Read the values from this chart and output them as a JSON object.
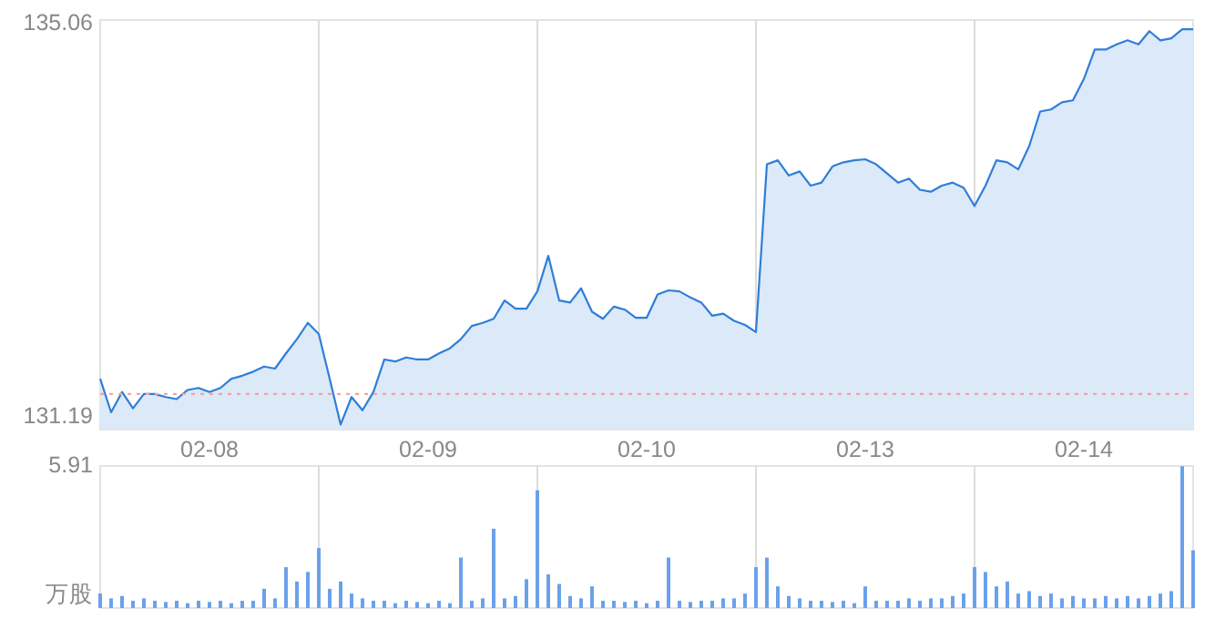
{
  "chart_data": [
    {
      "type": "area",
      "ylim": [
        131.07,
        135.1
      ],
      "yticks": [
        135.06,
        131.19
      ],
      "grid": "x",
      "categories": [
        null,
        null,
        null,
        null,
        null,
        null,
        null,
        null,
        null,
        null,
        "02-08",
        null,
        null,
        null,
        null,
        null,
        null,
        null,
        null,
        null,
        null,
        null,
        null,
        null,
        null,
        null,
        null,
        null,
        null,
        null,
        "02-09",
        null,
        null,
        null,
        null,
        null,
        null,
        null,
        null,
        null,
        null,
        null,
        null,
        null,
        null,
        null,
        null,
        null,
        null,
        null,
        "02-10",
        null,
        null,
        null,
        null,
        null,
        null,
        null,
        null,
        null,
        null,
        null,
        null,
        null,
        null,
        null,
        null,
        null,
        null,
        null,
        "02-13",
        null,
        null,
        null,
        null,
        null,
        null,
        null,
        null,
        null,
        null,
        null,
        null,
        null,
        null,
        null,
        null,
        null,
        null,
        null,
        "02-14",
        null,
        null,
        null,
        null,
        null,
        null,
        null,
        null,
        null,
        null
      ],
      "ref_lines": [
        {
          "axis": "y",
          "value": 131.42,
          "color": "#f4a3a3",
          "line_style": "dotted"
        }
      ],
      "series": [
        {
          "color": "#2f7ed8",
          "values": [
            131.57,
            131.24,
            131.44,
            131.28,
            131.42,
            131.42,
            131.39,
            131.37,
            131.46,
            131.48,
            131.44,
            131.48,
            131.57,
            131.6,
            131.64,
            131.69,
            131.67,
            131.82,
            131.96,
            132.12,
            132.01,
            131.57,
            131.12,
            131.39,
            131.26,
            131.44,
            131.76,
            131.74,
            131.78,
            131.76,
            131.76,
            131.82,
            131.87,
            131.96,
            132.09,
            132.12,
            132.16,
            132.34,
            132.26,
            132.26,
            132.43,
            132.78,
            132.34,
            132.32,
            132.46,
            132.23,
            132.16,
            132.28,
            132.25,
            132.17,
            132.17,
            132.4,
            132.44,
            132.43,
            132.37,
            132.32,
            132.19,
            132.21,
            132.14,
            132.1,
            132.03,
            133.68,
            133.72,
            133.57,
            133.61,
            133.47,
            133.5,
            133.66,
            133.7,
            133.72,
            133.73,
            133.68,
            133.59,
            133.5,
            133.54,
            133.43,
            133.41,
            133.47,
            133.5,
            133.45,
            133.27,
            133.47,
            133.72,
            133.7,
            133.63,
            133.86,
            134.2,
            134.22,
            134.29,
            134.31,
            134.52,
            134.81,
            134.81,
            134.86,
            134.9,
            134.86,
            134.99,
            134.9,
            134.92,
            135.01,
            135.01
          ]
        }
      ]
    },
    {
      "type": "bar",
      "ylim": [
        0,
        5.91
      ],
      "yticks": [
        5.91
      ],
      "ylabel": "万股",
      "tick_labels": "y",
      "grid": "x",
      "categories": [
        null,
        null,
        null,
        null,
        null,
        null,
        null,
        null,
        null,
        null,
        null,
        null,
        null,
        null,
        null,
        null,
        null,
        null,
        null,
        null,
        null,
        null,
        null,
        null,
        null,
        null,
        null,
        null,
        null,
        null,
        null,
        null,
        null,
        null,
        null,
        null,
        null,
        null,
        null,
        null,
        null,
        null,
        null,
        null,
        null,
        null,
        null,
        null,
        null,
        null,
        null,
        null,
        null,
        null,
        null,
        null,
        null,
        null,
        null,
        null,
        null,
        null,
        null,
        null,
        null,
        null,
        null,
        null,
        null,
        null,
        null,
        null,
        null,
        null,
        null,
        null,
        null,
        null,
        null,
        null,
        null,
        null,
        null,
        null,
        null,
        null,
        null,
        null,
        null,
        null,
        null,
        null,
        null,
        null,
        null,
        null,
        null,
        null,
        null,
        null,
        null
      ],
      "series": [
        {
          "color": "#6aa1ea",
          "values": [
            0.6,
            0.4,
            0.5,
            0.3,
            0.4,
            0.3,
            0.25,
            0.3,
            0.2,
            0.3,
            0.25,
            0.3,
            0.2,
            0.3,
            0.3,
            0.8,
            0.4,
            1.7,
            1.1,
            1.5,
            2.5,
            0.8,
            1.1,
            0.6,
            0.4,
            0.3,
            0.3,
            0.2,
            0.3,
            0.25,
            0.2,
            0.3,
            0.2,
            2.1,
            0.3,
            0.4,
            3.3,
            0.4,
            0.5,
            1.2,
            4.9,
            1.4,
            1.0,
            0.5,
            0.4,
            0.9,
            0.3,
            0.3,
            0.25,
            0.3,
            0.2,
            0.3,
            2.1,
            0.3,
            0.25,
            0.3,
            0.3,
            0.4,
            0.4,
            0.6,
            1.7,
            2.1,
            0.9,
            0.5,
            0.4,
            0.3,
            0.3,
            0.25,
            0.3,
            0.2,
            0.9,
            0.3,
            0.3,
            0.3,
            0.4,
            0.3,
            0.4,
            0.4,
            0.5,
            0.6,
            1.7,
            1.5,
            0.9,
            1.1,
            0.6,
            0.7,
            0.5,
            0.6,
            0.4,
            0.5,
            0.4,
            0.4,
            0.5,
            0.4,
            0.5,
            0.4,
            0.5,
            0.6,
            0.7,
            5.9,
            2.4
          ]
        }
      ]
    }
  ]
}
